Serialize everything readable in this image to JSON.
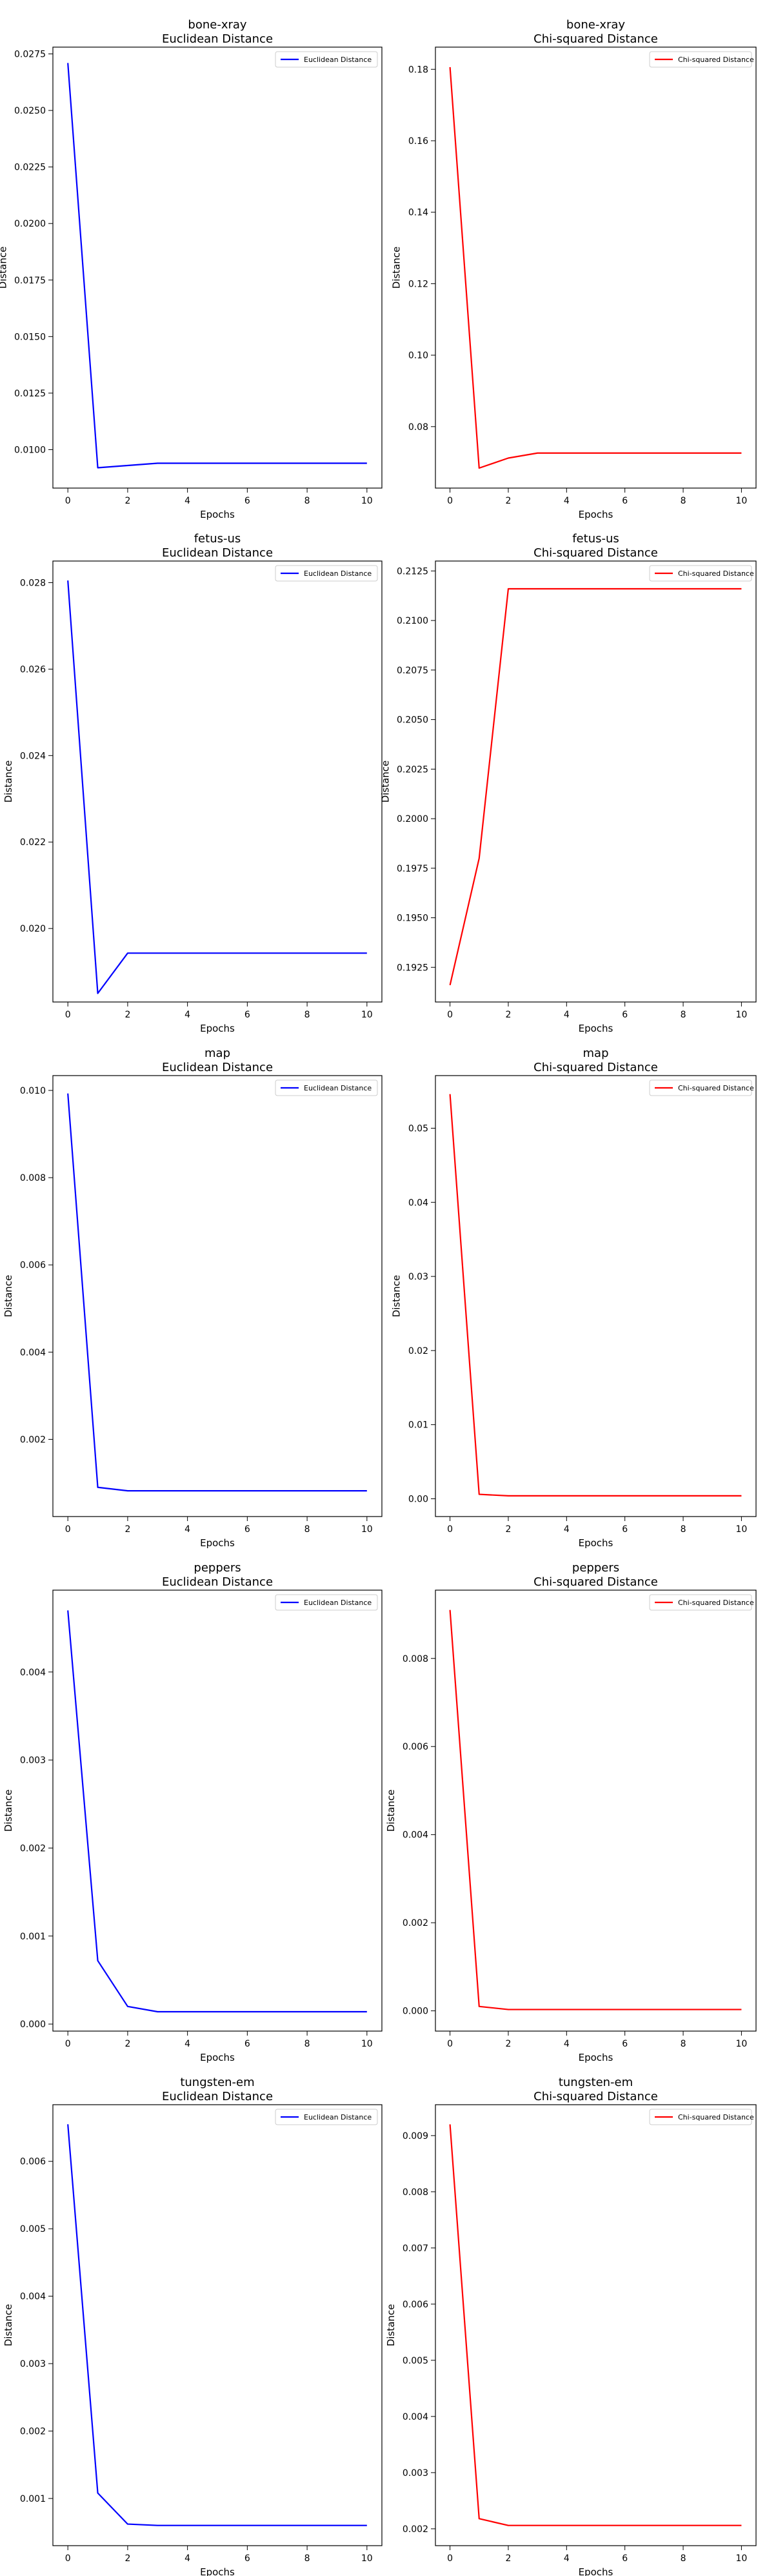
{
  "figure": {
    "background": "#ffffff"
  },
  "chart_data": [
    {
      "type": "line",
      "panel": "bone-xray-euclidean",
      "title": "bone-xray",
      "subtitle": "Euclidean Distance",
      "xlabel": "Epochs",
      "ylabel": "Distance",
      "xlim": [
        -0.5,
        10.5
      ],
      "ylim": [
        0.0083,
        0.0278
      ],
      "xticks": [
        0,
        2,
        4,
        6,
        8,
        10
      ],
      "xtick_labels": [
        "0",
        "2",
        "4",
        "6",
        "8",
        "10"
      ],
      "yticks": [
        0.01,
        0.0125,
        0.015,
        0.0175,
        0.02,
        0.0225,
        0.025,
        0.0275
      ],
      "ytick_labels": [
        "0.0100",
        "0.0125",
        "0.0150",
        "0.0175",
        "0.0200",
        "0.0225",
        "0.0250",
        "0.0275"
      ],
      "legend_position": "top-right",
      "grid": false,
      "series": [
        {
          "name": "Euclidean Distance",
          "color": "#0000ff",
          "x": [
            0,
            1,
            2,
            3,
            4,
            5,
            6,
            7,
            8,
            9,
            10
          ],
          "y": [
            0.0271,
            0.0092,
            0.0093,
            0.0094,
            0.0094,
            0.0094,
            0.0094,
            0.0094,
            0.0094,
            0.0094,
            0.0094
          ]
        }
      ]
    },
    {
      "type": "line",
      "panel": "bone-xray-chi",
      "title": "bone-xray",
      "subtitle": "Chi-squared Distance",
      "xlabel": "Epochs",
      "ylabel": "Distance",
      "xlim": [
        -0.5,
        10.5
      ],
      "ylim": [
        0.0628,
        0.1862
      ],
      "xticks": [
        0,
        2,
        4,
        6,
        8,
        10
      ],
      "xtick_labels": [
        "0",
        "2",
        "4",
        "6",
        "8",
        "10"
      ],
      "yticks": [
        0.08,
        0.1,
        0.12,
        0.14,
        0.16,
        0.18
      ],
      "ytick_labels": [
        "0.08",
        "0.10",
        "0.12",
        "0.14",
        "0.16",
        "0.18"
      ],
      "legend_position": "top-right",
      "grid": false,
      "series": [
        {
          "name": "Chi-squared Distance",
          "color": "#ff0000",
          "x": [
            0,
            1,
            2,
            3,
            4,
            5,
            6,
            7,
            8,
            9,
            10
          ],
          "y": [
            0.1806,
            0.0684,
            0.0712,
            0.0726,
            0.0726,
            0.0726,
            0.0726,
            0.0726,
            0.0726,
            0.0726,
            0.0726
          ]
        }
      ]
    },
    {
      "type": "line",
      "panel": "fetus-us-euclidean",
      "title": "fetus-us",
      "subtitle": "Euclidean Distance",
      "xlabel": "Epochs",
      "ylabel": "Distance",
      "xlim": [
        -0.5,
        10.5
      ],
      "ylim": [
        0.0183,
        0.0285
      ],
      "xticks": [
        0,
        2,
        4,
        6,
        8,
        10
      ],
      "xtick_labels": [
        "0",
        "2",
        "4",
        "6",
        "8",
        "10"
      ],
      "yticks": [
        0.02,
        0.022,
        0.024,
        0.026,
        0.028
      ],
      "ytick_labels": [
        "0.020",
        "0.022",
        "0.024",
        "0.026",
        "0.028"
      ],
      "legend_position": "top-right",
      "grid": false,
      "series": [
        {
          "name": "Euclidean Distance",
          "color": "#0000ff",
          "x": [
            0,
            1,
            2,
            3,
            4,
            5,
            6,
            7,
            8,
            9,
            10
          ],
          "y": [
            0.02805,
            0.0185,
            0.01943,
            0.01943,
            0.01943,
            0.01943,
            0.01943,
            0.01943,
            0.01943,
            0.01943,
            0.01943
          ]
        }
      ]
    },
    {
      "type": "line",
      "panel": "fetus-us-chi",
      "title": "fetus-us",
      "subtitle": "Chi-squared Distance",
      "xlabel": "Epochs",
      "ylabel": "Distance",
      "xlim": [
        -0.5,
        10.5
      ],
      "ylim": [
        0.19075,
        0.213
      ],
      "xticks": [
        0,
        2,
        4,
        6,
        8,
        10
      ],
      "xtick_labels": [
        "0",
        "2",
        "4",
        "6",
        "8",
        "10"
      ],
      "yticks": [
        0.1925,
        0.195,
        0.1975,
        0.2,
        0.2025,
        0.205,
        0.2075,
        0.21,
        0.2125
      ],
      "ytick_labels": [
        "0.1925",
        "0.1950",
        "0.1975",
        "0.2000",
        "0.2025",
        "0.2050",
        "0.2075",
        "0.2100",
        "0.2125"
      ],
      "legend_position": "top-right",
      "grid": false,
      "series": [
        {
          "name": "Chi-squared Distance",
          "color": "#ff0000",
          "x": [
            0,
            1,
            2,
            3,
            4,
            5,
            6,
            7,
            8,
            9,
            10
          ],
          "y": [
            0.1916,
            0.198,
            0.2116,
            0.2116,
            0.2116,
            0.2116,
            0.2116,
            0.2116,
            0.2116,
            0.2116,
            0.2116
          ]
        }
      ]
    },
    {
      "type": "line",
      "panel": "map-euclidean",
      "title": "map",
      "subtitle": "Euclidean Distance",
      "xlabel": "Epochs",
      "ylabel": "Distance",
      "xlim": [
        -0.5,
        10.5
      ],
      "ylim": [
        0.00023,
        0.01034
      ],
      "xticks": [
        0,
        2,
        4,
        6,
        8,
        10
      ],
      "xtick_labels": [
        "0",
        "2",
        "4",
        "6",
        "8",
        "10"
      ],
      "yticks": [
        0.002,
        0.004,
        0.006,
        0.008,
        0.01
      ],
      "ytick_labels": [
        "0.002",
        "0.004",
        "0.006",
        "0.008",
        "0.010"
      ],
      "legend_position": "top-right",
      "grid": false,
      "series": [
        {
          "name": "Euclidean Distance",
          "color": "#0000ff",
          "x": [
            0,
            1,
            2,
            3,
            4,
            5,
            6,
            7,
            8,
            9,
            10
          ],
          "y": [
            0.00993,
            0.0009,
            0.00082,
            0.00082,
            0.00082,
            0.00082,
            0.00082,
            0.00082,
            0.00082,
            0.00082,
            0.00082
          ]
        }
      ]
    },
    {
      "type": "line",
      "panel": "map-chi",
      "title": "map",
      "subtitle": "Chi-squared Distance",
      "xlabel": "Epochs",
      "ylabel": "Distance",
      "xlim": [
        -0.5,
        10.5
      ],
      "ylim": [
        -0.0024,
        0.0571
      ],
      "xticks": [
        0,
        2,
        4,
        6,
        8,
        10
      ],
      "xtick_labels": [
        "0",
        "2",
        "4",
        "6",
        "8",
        "10"
      ],
      "yticks": [
        0.0,
        0.01,
        0.02,
        0.03,
        0.04,
        0.05
      ],
      "ytick_labels": [
        "0.00",
        "0.01",
        "0.02",
        "0.03",
        "0.04",
        "0.05"
      ],
      "legend_position": "top-right",
      "grid": false,
      "series": [
        {
          "name": "Chi-squared Distance",
          "color": "#ff0000",
          "x": [
            0,
            1,
            2,
            3,
            4,
            5,
            6,
            7,
            8,
            9,
            10
          ],
          "y": [
            0.0546,
            0.0006,
            0.0004,
            0.0004,
            0.0004,
            0.0004,
            0.0004,
            0.0004,
            0.0004,
            0.0004,
            0.0004
          ]
        }
      ]
    },
    {
      "type": "line",
      "panel": "peppers-euclidean",
      "title": "peppers",
      "subtitle": "Euclidean Distance",
      "xlabel": "Epochs",
      "ylabel": "Distance",
      "xlim": [
        -0.5,
        10.5
      ],
      "ylim": [
        -8e-05,
        0.00493
      ],
      "xticks": [
        0,
        2,
        4,
        6,
        8,
        10
      ],
      "xtick_labels": [
        "0",
        "2",
        "4",
        "6",
        "8",
        "10"
      ],
      "yticks": [
        0.0,
        0.001,
        0.002,
        0.003,
        0.004
      ],
      "ytick_labels": [
        "0.000",
        "0.001",
        "0.002",
        "0.003",
        "0.004"
      ],
      "legend_position": "top-right",
      "grid": false,
      "series": [
        {
          "name": "Euclidean Distance",
          "color": "#0000ff",
          "x": [
            0,
            1,
            2,
            3,
            4,
            5,
            6,
            7,
            8,
            9,
            10
          ],
          "y": [
            0.0047,
            0.00072,
            0.0002,
            0.00014,
            0.00014,
            0.00014,
            0.00014,
            0.00014,
            0.00014,
            0.00014,
            0.00014
          ]
        }
      ]
    },
    {
      "type": "line",
      "panel": "peppers-chi",
      "title": "peppers",
      "subtitle": "Chi-squared Distance",
      "xlabel": "Epochs",
      "ylabel": "Distance",
      "xlim": [
        -0.5,
        10.5
      ],
      "ylim": [
        -0.00046,
        0.00955
      ],
      "xticks": [
        0,
        2,
        4,
        6,
        8,
        10
      ],
      "xtick_labels": [
        "0",
        "2",
        "4",
        "6",
        "8",
        "10"
      ],
      "yticks": [
        0.0,
        0.002,
        0.004,
        0.006,
        0.008
      ],
      "ytick_labels": [
        "0.000",
        "0.002",
        "0.004",
        "0.006",
        "0.008"
      ],
      "legend_position": "top-right",
      "grid": false,
      "series": [
        {
          "name": "Chi-squared Distance",
          "color": "#ff0000",
          "x": [
            0,
            1,
            2,
            3,
            4,
            5,
            6,
            7,
            8,
            9,
            10
          ],
          "y": [
            0.0091,
            0.0001,
            3e-05,
            3e-05,
            3e-05,
            3e-05,
            3e-05,
            3e-05,
            3e-05,
            3e-05,
            3e-05
          ]
        }
      ]
    },
    {
      "type": "line",
      "panel": "tungsten-em-euclidean",
      "title": "tungsten-em",
      "subtitle": "Euclidean Distance",
      "xlabel": "Epochs",
      "ylabel": "Distance",
      "xlim": [
        -0.5,
        10.5
      ],
      "ylim": [
        0.0003,
        0.00684
      ],
      "xticks": [
        0,
        2,
        4,
        6,
        8,
        10
      ],
      "xtick_labels": [
        "0",
        "2",
        "4",
        "6",
        "8",
        "10"
      ],
      "yticks": [
        0.001,
        0.002,
        0.003,
        0.004,
        0.005,
        0.006
      ],
      "ytick_labels": [
        "0.001",
        "0.002",
        "0.003",
        "0.004",
        "0.005",
        "0.006"
      ],
      "legend_position": "top-right",
      "grid": false,
      "series": [
        {
          "name": "Euclidean Distance",
          "color": "#0000ff",
          "x": [
            0,
            1,
            2,
            3,
            4,
            5,
            6,
            7,
            8,
            9,
            10
          ],
          "y": [
            0.00655,
            0.00108,
            0.00062,
            0.0006,
            0.0006,
            0.0006,
            0.0006,
            0.0006,
            0.0006,
            0.0006,
            0.0006
          ]
        }
      ]
    },
    {
      "type": "line",
      "panel": "tungsten-em-chi",
      "title": "tungsten-em",
      "subtitle": "Chi-squared Distance",
      "xlabel": "Epochs",
      "ylabel": "Distance",
      "xlim": [
        -0.5,
        10.5
      ],
      "ylim": [
        0.0017,
        0.00955
      ],
      "xticks": [
        0,
        2,
        4,
        6,
        8,
        10
      ],
      "xtick_labels": [
        "0",
        "2",
        "4",
        "6",
        "8",
        "10"
      ],
      "yticks": [
        0.002,
        0.003,
        0.004,
        0.005,
        0.006,
        0.007,
        0.008,
        0.009
      ],
      "ytick_labels": [
        "0.002",
        "0.003",
        "0.004",
        "0.005",
        "0.006",
        "0.007",
        "0.008",
        "0.009"
      ],
      "legend_position": "top-right",
      "grid": false,
      "series": [
        {
          "name": "Chi-squared Distance",
          "color": "#ff0000",
          "x": [
            0,
            1,
            2,
            3,
            4,
            5,
            6,
            7,
            8,
            9,
            10
          ],
          "y": [
            0.0092,
            0.00218,
            0.00206,
            0.00206,
            0.00206,
            0.00206,
            0.00206,
            0.00206,
            0.00206,
            0.00206,
            0.00206
          ]
        }
      ]
    }
  ]
}
